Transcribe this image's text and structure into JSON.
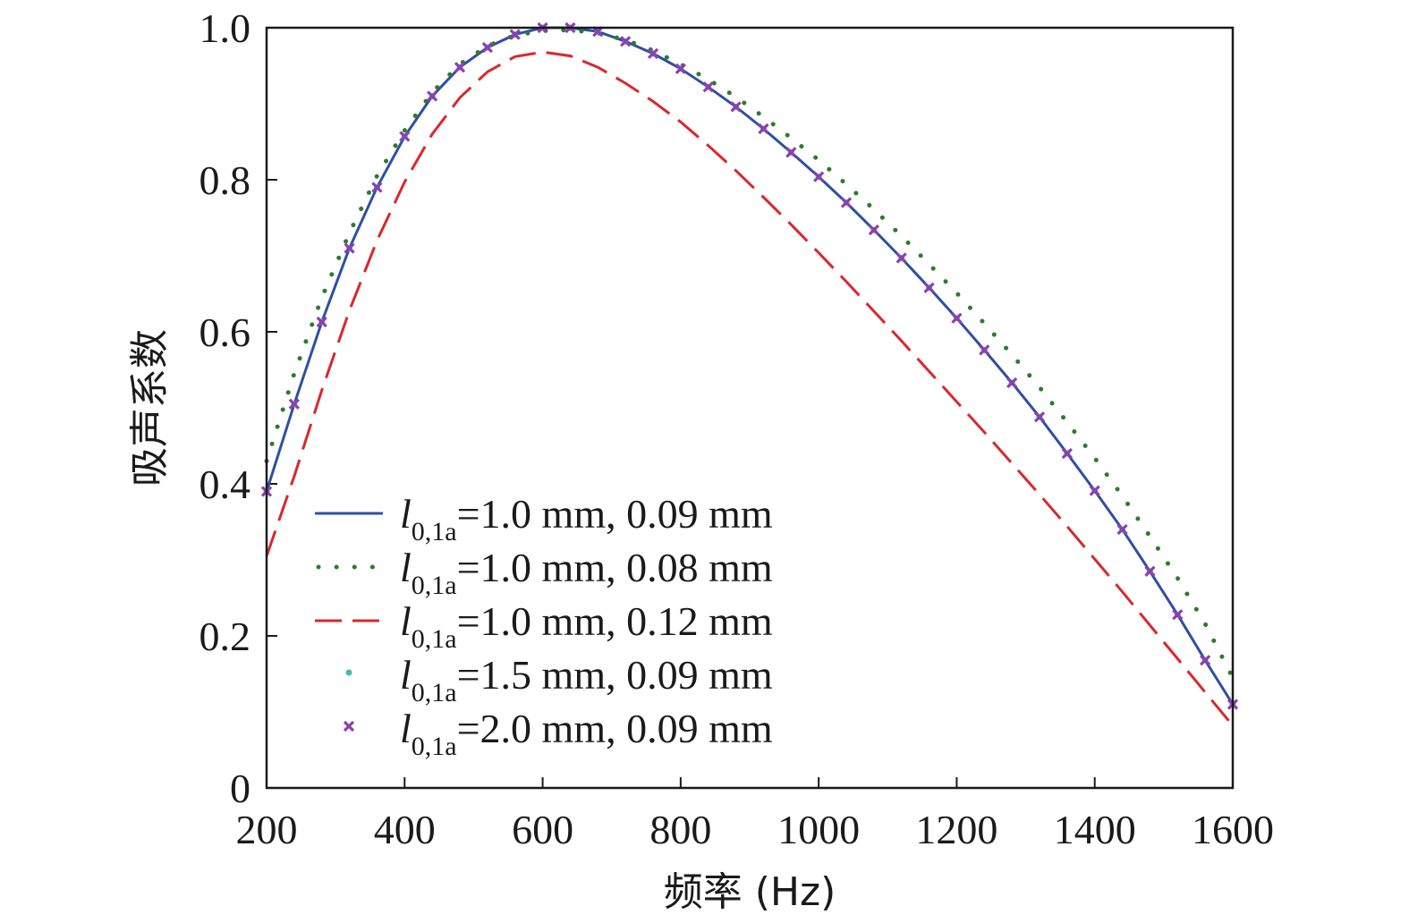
{
  "chart_data": {
    "type": "line",
    "xlabel": "频率 (Hz)",
    "ylabel": "吸声系数",
    "xlim": [
      200,
      1600
    ],
    "ylim": [
      0,
      1.0
    ],
    "x_ticks": [
      200,
      400,
      600,
      800,
      1000,
      1200,
      1400,
      1600
    ],
    "y_ticks": [
      0,
      0.2,
      0.4,
      0.6,
      0.8,
      1.0
    ],
    "x_tick_labels": [
      "200",
      "400",
      "600",
      "800",
      "1000",
      "1200",
      "1400",
      "1600"
    ],
    "y_tick_labels": [
      "0",
      "0.2",
      "0.4",
      "0.6",
      "0.8",
      "1.0"
    ],
    "grid": false,
    "legend_position": "lower-left",
    "x": [
      200,
      240,
      280,
      320,
      360,
      400,
      440,
      480,
      520,
      560,
      600,
      640,
      680,
      720,
      760,
      800,
      840,
      880,
      920,
      960,
      1000,
      1040,
      1080,
      1120,
      1160,
      1200,
      1240,
      1280,
      1320,
      1360,
      1400,
      1440,
      1480,
      1520,
      1560,
      1600
    ],
    "series": [
      {
        "name": "l0,1a=1.0 mm, 0.09 mm",
        "label_main": "l",
        "label_sub": "0,1a",
        "label_rest": "=1.0 mm, 0.09 mm",
        "style": "solid",
        "color": "#2e4fa3",
        "values": [
          0.39,
          0.505,
          0.613,
          0.71,
          0.79,
          0.857,
          0.91,
          0.948,
          0.974,
          0.991,
          1.0,
          1.0,
          0.995,
          0.982,
          0.966,
          0.946,
          0.922,
          0.896,
          0.867,
          0.836,
          0.804,
          0.77,
          0.734,
          0.697,
          0.658,
          0.618,
          0.576,
          0.533,
          0.488,
          0.44,
          0.391,
          0.34,
          0.285,
          0.228,
          0.168,
          0.11
        ]
      },
      {
        "name": "l0,1a=1.0 mm, 0.08 mm",
        "label_main": "l",
        "label_sub": "0,1a",
        "label_rest": "=1.0 mm, 0.08 mm",
        "style": "dotted",
        "color": "#2f7a2f",
        "values": [
          0.43,
          0.545,
          0.645,
          0.73,
          0.805,
          0.865,
          0.915,
          0.952,
          0.976,
          0.99,
          0.996,
          0.997,
          0.993,
          0.984,
          0.97,
          0.952,
          0.932,
          0.909,
          0.883,
          0.855,
          0.826,
          0.794,
          0.761,
          0.726,
          0.689,
          0.651,
          0.611,
          0.57,
          0.527,
          0.481,
          0.434,
          0.384,
          0.331,
          0.276,
          0.216,
          0.145
        ]
      },
      {
        "name": "l0,1a=1.0 mm, 0.12 mm",
        "label_main": "l",
        "label_sub": "0,1a",
        "label_rest": "=1.0 mm, 0.12 mm",
        "style": "dashed",
        "color": "#d9282e",
        "values": [
          0.305,
          0.41,
          0.523,
          0.628,
          0.72,
          0.797,
          0.86,
          0.908,
          0.942,
          0.962,
          0.968,
          0.963,
          0.948,
          0.927,
          0.903,
          0.876,
          0.845,
          0.812,
          0.777,
          0.741,
          0.704,
          0.666,
          0.627,
          0.588,
          0.548,
          0.508,
          0.468,
          0.427,
          0.386,
          0.344,
          0.301,
          0.258,
          0.214,
          0.17,
          0.126,
          0.082
        ]
      },
      {
        "name": "l0,1a=1.5 mm, 0.09 mm",
        "label_main": "l",
        "label_sub": "0,1a",
        "label_rest": "=1.5 mm, 0.09 mm",
        "style": "dot-marker",
        "color": "#3bbfb3",
        "values": [
          0.39,
          0.505,
          0.613,
          0.71,
          0.79,
          0.857,
          0.91,
          0.948,
          0.974,
          0.991,
          1.0,
          1.0,
          0.995,
          0.982,
          0.966,
          0.946,
          0.922,
          0.896,
          0.867,
          0.836,
          0.804,
          0.77,
          0.734,
          0.697,
          0.658,
          0.618,
          0.576,
          0.533,
          0.488,
          0.44,
          0.391,
          0.34,
          0.285,
          0.228,
          0.168,
          0.11
        ]
      },
      {
        "name": "l0,1a=2.0 mm, 0.09 mm",
        "label_main": "l",
        "label_sub": "0,1a",
        "label_rest": "=2.0 mm, 0.09 mm",
        "style": "x-marker",
        "color": "#8e3fb0",
        "values": [
          0.39,
          0.505,
          0.613,
          0.71,
          0.79,
          0.857,
          0.91,
          0.948,
          0.974,
          0.991,
          1.0,
          1.0,
          0.995,
          0.982,
          0.966,
          0.946,
          0.922,
          0.896,
          0.867,
          0.836,
          0.804,
          0.77,
          0.734,
          0.697,
          0.658,
          0.618,
          0.576,
          0.533,
          0.488,
          0.44,
          0.391,
          0.34,
          0.285,
          0.228,
          0.168,
          0.11
        ]
      }
    ]
  }
}
